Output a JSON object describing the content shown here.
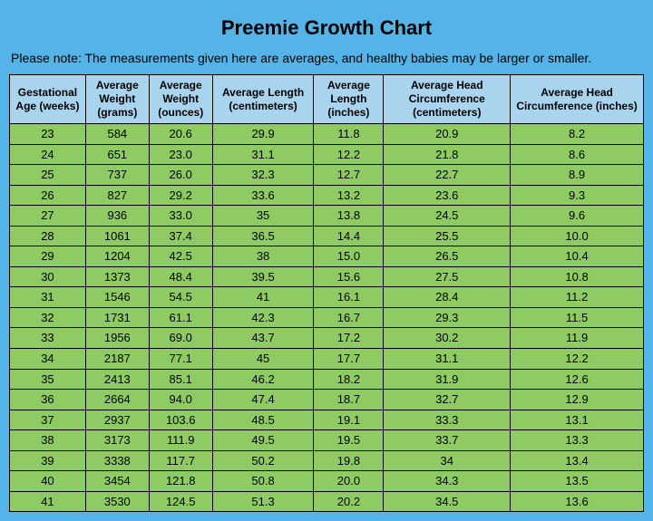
{
  "title": "Preemie Growth Chart",
  "note": "Please note:  The measurements given here are averages, and healthy babies may be larger or smaller.",
  "table": {
    "type": "table",
    "header_bg": "#a8d4ee",
    "row_bg": "#8ecb63",
    "page_bg": "#54b4e8",
    "border_color": "#000000",
    "header_fontsize": 12,
    "cell_fontsize": 13,
    "columns": [
      "Gestational Age (weeks)",
      "Average Weight (grams)",
      "Average Weight (ounces)",
      "Average Length (centimeters)",
      "Average Length (inches)",
      "Average Head Circumference (centimeters)",
      "Average Head Circumference (inches)"
    ],
    "col_widths_pct": [
      12,
      10,
      10,
      16,
      11,
      20,
      21
    ],
    "rows": [
      [
        "23",
        "584",
        "20.6",
        "29.9",
        "11.8",
        "20.9",
        "8.2"
      ],
      [
        "24",
        "651",
        "23.0",
        "31.1",
        "12.2",
        "21.8",
        "8.6"
      ],
      [
        "25",
        "737",
        "26.0",
        "32.3",
        "12.7",
        "22.7",
        "8.9"
      ],
      [
        "26",
        "827",
        "29.2",
        "33.6",
        "13.2",
        "23.6",
        "9.3"
      ],
      [
        "27",
        "936",
        "33.0",
        "35",
        "13.8",
        "24.5",
        "9.6"
      ],
      [
        "28",
        "1061",
        "37.4",
        "36.5",
        "14.4",
        "25.5",
        "10.0"
      ],
      [
        "29",
        "1204",
        "42.5",
        "38",
        "15.0",
        "26.5",
        "10.4"
      ],
      [
        "30",
        "1373",
        "48.4",
        "39.5",
        "15.6",
        "27.5",
        "10.8"
      ],
      [
        "31",
        "1546",
        "54.5",
        "41",
        "16.1",
        "28.4",
        "11.2"
      ],
      [
        "32",
        "1731",
        "61.1",
        "42.3",
        "16.7",
        "29.3",
        "11.5"
      ],
      [
        "33",
        "1956",
        "69.0",
        "43.7",
        "17.2",
        "30.2",
        "11.9"
      ],
      [
        "34",
        "2187",
        "77.1",
        "45",
        "17.7",
        "31.1",
        "12.2"
      ],
      [
        "35",
        "2413",
        "85.1",
        "46.2",
        "18.2",
        "31.9",
        "12.6"
      ],
      [
        "36",
        "2664",
        "94.0",
        "47.4",
        "18.7",
        "32.7",
        "12.9"
      ],
      [
        "37",
        "2937",
        "103.6",
        "48.5",
        "19.1",
        "33.3",
        "13.1"
      ],
      [
        "38",
        "3173",
        "111.9",
        "49.5",
        "19.5",
        "33.7",
        "13.3"
      ],
      [
        "39",
        "3338",
        "117.7",
        "50.2",
        "19.8",
        "34",
        "13.4"
      ],
      [
        "40",
        "3454",
        "121.8",
        "50.8",
        "20.0",
        "34.3",
        "13.5"
      ],
      [
        "41",
        "3530",
        "124.5",
        "51.3",
        "20.2",
        "34.5",
        "13.6"
      ]
    ]
  }
}
